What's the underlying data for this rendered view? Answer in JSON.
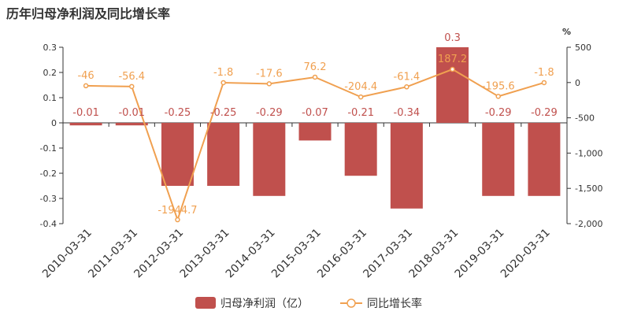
{
  "title": "历年归母净利润及同比增长率",
  "colors": {
    "bar": "#c0504d",
    "line": "#f0a050",
    "axis": "#333333"
  },
  "chart_data": {
    "type": "bar",
    "categories": [
      "2010-03-31",
      "2011-03-31",
      "2012-03-31",
      "2013-03-31",
      "2014-03-31",
      "2015-03-31",
      "2016-03-31",
      "2017-03-31",
      "2018-03-31",
      "2019-03-31",
      "2020-03-31"
    ],
    "series": [
      {
        "name": "归母净利润（亿）",
        "type": "bar",
        "axis": "left",
        "values": [
          -0.01,
          -0.01,
          -0.25,
          -0.25,
          -0.29,
          -0.07,
          -0.21,
          -0.34,
          0.3,
          -0.29,
          -0.29
        ]
      },
      {
        "name": "同比增长率",
        "type": "line",
        "axis": "right",
        "values": [
          -46,
          -56.4,
          -1944.7,
          -1.8,
          -17.6,
          76.2,
          -204.4,
          -61.4,
          187.2,
          -195.6,
          -1.8
        ]
      }
    ],
    "y_left": {
      "ylim": [
        -0.4,
        0.3
      ],
      "ticks": [
        "0.3",
        "0.2",
        "0.1",
        "0",
        "-0.1",
        "-0.2",
        "-0.3",
        "-0.4"
      ]
    },
    "y_right": {
      "unit": "%",
      "ylim": [
        -2000,
        500
      ],
      "ticks": [
        "500",
        "0",
        "-500",
        "-1,000",
        "-1,500",
        "-2,000"
      ]
    },
    "bar_labels": [
      "-0.01",
      "-0.01",
      "-0.25",
      "-0.25",
      "-0.29",
      "-0.07",
      "-0.21",
      "-0.34",
      "0.3",
      "-0.29",
      "-0.29"
    ],
    "line_labels": [
      "-46",
      "-56.4",
      "-1944.7",
      "-1.8",
      "-17.6",
      "76.2",
      "-204.4",
      "-61.4",
      "187.2",
      "-195.6",
      "-1.8"
    ],
    "legend": {
      "placement": "bottom-center",
      "items": [
        "归母净利润（亿）",
        "同比增长率"
      ]
    }
  }
}
